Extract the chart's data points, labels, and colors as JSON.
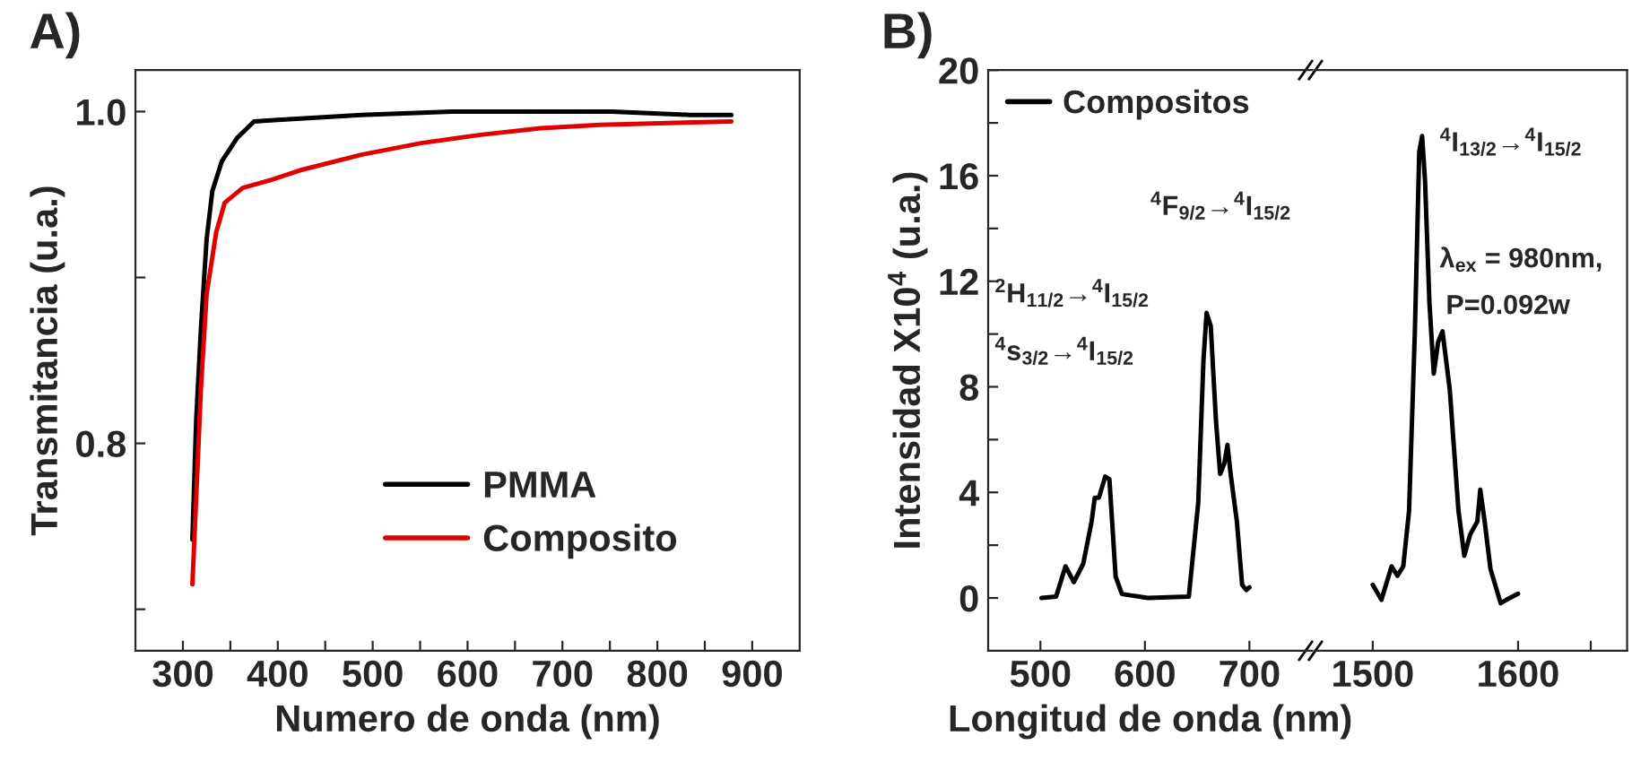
{
  "chart_data": [
    {
      "type": "line",
      "title": "A)",
      "xlabel": "Numero de onda (nm)",
      "ylabel": "Transmitancia (u.a.)",
      "xlim": [
        250,
        950
      ],
      "ylim": [
        0.675,
        1.025
      ],
      "xticks": [
        300,
        {
          "value": 350,
          "label": null
        },
        400,
        {
          "value": 450,
          "label": null
        },
        500,
        {
          "value": 550,
          "label": null
        },
        600,
        {
          "value": 650,
          "label": null
        },
        700,
        {
          "value": 750,
          "label": null
        },
        800,
        {
          "value": 850,
          "label": null
        },
        900
      ],
      "yticks": [
        {
          "value": 0.7,
          "label": null
        },
        0.8,
        {
          "value": 0.9,
          "label": null
        },
        {
          "value": 1.0,
          "label": "1.0"
        }
      ],
      "legend": "bottom right",
      "grid": false,
      "series": [
        {
          "name": "PMMA",
          "color": "#000000",
          "x": [
            310,
            314,
            319,
            325,
            331,
            341,
            357,
            375,
            400,
            488,
            583,
            752,
            834,
            878
          ],
          "values": [
            0.742,
            0.814,
            0.869,
            0.923,
            0.952,
            0.97,
            0.984,
            0.994,
            0.995,
            0.998,
            1.0,
            1.0,
            0.998,
            0.998
          ]
        },
        {
          "name": "Composito",
          "color": "#e00000",
          "x": [
            310,
            314,
            319,
            325,
            335,
            344,
            363,
            394,
            426,
            488,
            551,
            614,
            677,
            740,
            803,
            878
          ],
          "values": [
            0.715,
            0.767,
            0.833,
            0.89,
            0.927,
            0.945,
            0.954,
            0.959,
            0.965,
            0.974,
            0.981,
            0.986,
            0.99,
            0.992,
            0.993,
            0.994
          ]
        }
      ]
    },
    {
      "type": "line",
      "title": "B)",
      "xlabel": "Longitud de onda (nm)",
      "ylabel": "Intensidad X10$^{4}$ (u.a.)",
      "xlim": [
        450,
        760
      ],
      "ylim": [
        -2,
        20
      ],
      "xticks": [
        500,
        600,
        700
      ],
      "yticks": [
        0,
        {
          "value": 2,
          "label": null
        },
        4,
        {
          "value": 6,
          "label": null
        },
        8,
        {
          "value": 10,
          "label": null
        },
        12,
        {
          "value": 14,
          "label": null
        },
        16,
        {
          "value": 18,
          "label": null
        },
        20
      ],
      "legend": "top left",
      "grid": false,
      "annotations": [
        "$^{2}$H$_{11/2}$→$^{4}$I$_{15/2}$",
        "$^{4}$s$_{3/2}$→$^{4}$I$_{15/2}$",
        "$^{4}$F$_{9/2}$→$^{4}$I$_{15/2}$"
      ],
      "series": [
        {
          "name": "Compositos",
          "color": "#000000",
          "x": [
            501,
            515,
            524,
            532,
            541,
            549,
            552,
            556,
            562,
            566,
            572,
            578,
            603,
            642,
            651,
            656,
            659,
            663,
            668,
            672,
            676,
            679,
            682,
            688,
            693,
            697,
            700
          ],
          "values": [
            0.0,
            0.05,
            1.2,
            0.6,
            1.3,
            2.9,
            3.8,
            3.8,
            4.6,
            4.5,
            0.8,
            0.15,
            0.0,
            0.05,
            3.6,
            9.0,
            10.8,
            10.3,
            6.7,
            4.7,
            5.1,
            5.8,
            4.7,
            2.9,
            0.5,
            0.3,
            0.4
          ]
        }
      ]
    },
    {
      "type": "line",
      "xlim": [
        1460,
        1675
      ],
      "ylim": [
        -2,
        20
      ],
      "xticks": [
        1500,
        1600,
        {
          "value": 1650,
          "label": null
        }
      ],
      "tick_labels": "x",
      "grid": false,
      "annotations": [
        "$^{4}$I$_{13/2}$→$^{4}$I$_{15/2}$",
        "λ$_{ex}$ = 980nm,",
        "P=0.092w"
      ],
      "series": [
        {
          "color": "#000000",
          "x": [
            1500,
            1506,
            1513,
            1517,
            1521,
            1525,
            1529,
            1532,
            1534,
            1536,
            1539,
            1542,
            1545,
            1548,
            1553,
            1559,
            1563,
            1567,
            1572,
            1574,
            1577,
            1581,
            1588,
            1592,
            1600
          ],
          "values": [
            0.5,
            -0.07,
            1.2,
            0.84,
            1.2,
            3.3,
            10.1,
            16.9,
            17.5,
            15.8,
            11.2,
            8.5,
            9.7,
            10.1,
            7.9,
            3.3,
            1.6,
            2.4,
            2.9,
            4.1,
            2.9,
            1.1,
            -0.2,
            -0.07,
            0.16
          ]
        }
      ]
    }
  ]
}
